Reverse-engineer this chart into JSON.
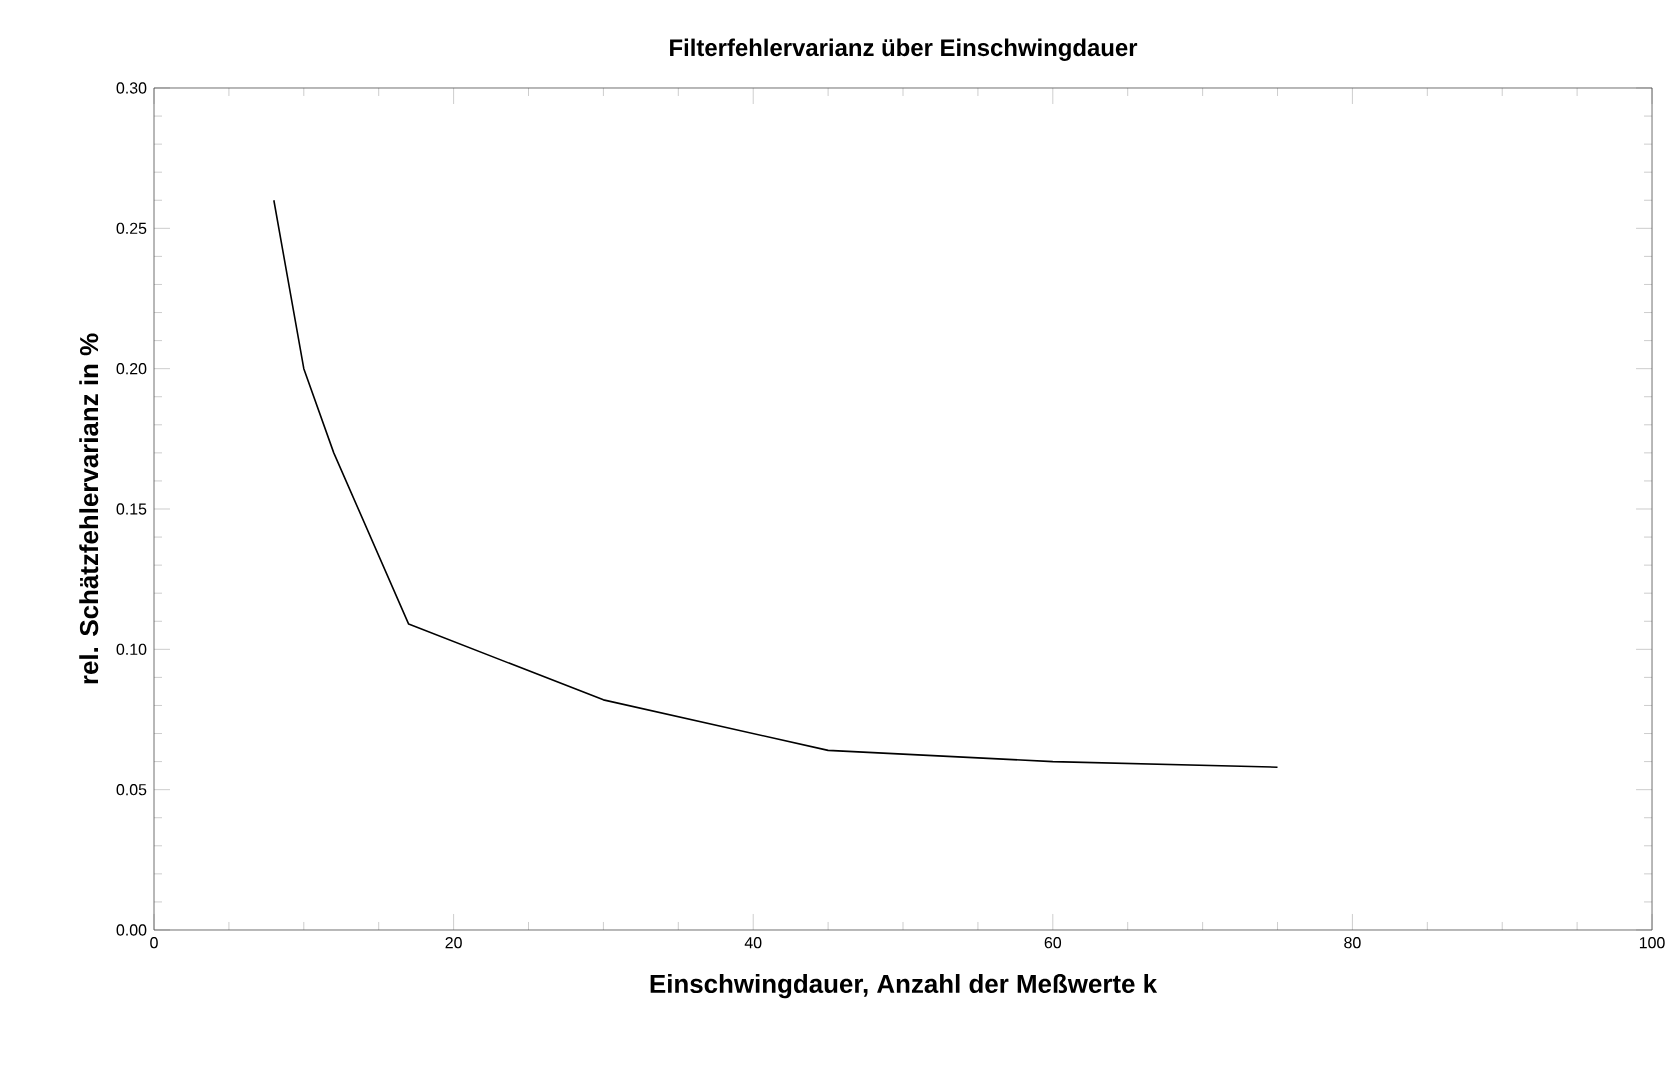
{
  "chart_data": {
    "type": "line",
    "title": "Filterfehlervarianz über Einschwingdauer",
    "xlabel": "Einschwingdauer, Anzahl der Meßwerte k",
    "ylabel": "rel. Schätzfehlervarianz in %",
    "x": [
      8,
      10,
      12,
      17,
      30,
      45,
      60,
      75
    ],
    "series": [
      {
        "color": "#000000",
        "values": [
          0.26,
          0.2,
          0.17,
          0.109,
          0.082,
          0.064,
          0.06,
          0.058
        ]
      }
    ],
    "xlim": [
      0,
      100
    ],
    "ylim": [
      0,
      0.3
    ],
    "xticks": [
      0,
      20,
      40,
      60,
      80,
      100
    ],
    "yticks": [
      {
        "value": 0,
        "label": "0.00"
      },
      {
        "value": 0.05,
        "label": "0.05"
      },
      {
        "value": 0.1,
        "label": "0.10"
      },
      {
        "value": 0.15,
        "label": "0.15"
      },
      {
        "value": 0.2,
        "label": "0.20"
      },
      {
        "value": 0.25,
        "label": "0.25"
      },
      {
        "value": 0.3,
        "label": "0.30"
      }
    ],
    "grid": false
  }
}
